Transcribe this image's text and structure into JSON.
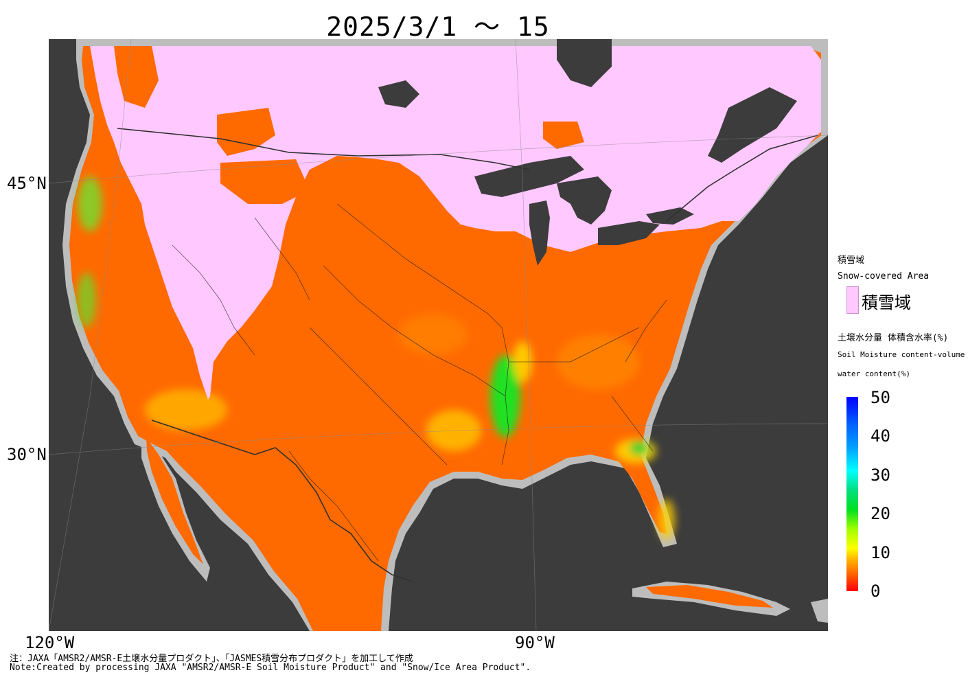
{
  "title": "2025/3/1 ～ 15",
  "axes": {
    "lat_labels": [
      "45°N",
      "30°N"
    ],
    "lon_labels": [
      "120°W",
      "90°W"
    ]
  },
  "legend": {
    "snow_header_jp": "積雪域",
    "snow_header_en": "Snow-covered Area",
    "snow_item": "積雪域",
    "snow_color": "#ffc8ff",
    "soil_header_jp": "土壌水分量 体積含水率(%)",
    "soil_header_en1": "Soil Moisture content-volume",
    "soil_header_en2": "water content(%)",
    "ticks": [
      "50",
      "40",
      "30",
      "20",
      "10",
      "0"
    ]
  },
  "notes": {
    "jp": "注：JAXA「AMSR2/AMSR-E土壌水分量プロダクト」、「JASMES積雪分布プロダクト」を加工して作成",
    "en": "Note:Created by processing JAXA \"AMSR2/AMSR-E Soil Moisture Product\" and \"Snow/Ice Area Product\"."
  },
  "colors": {
    "ocean": "#3c3c3c",
    "coast_nodata": "#bdbdbd",
    "dry_soil": "#ff6a00",
    "moist_soil": "#ffe000",
    "wet_soil": "#30e030",
    "snow": "#ffc8ff"
  }
}
